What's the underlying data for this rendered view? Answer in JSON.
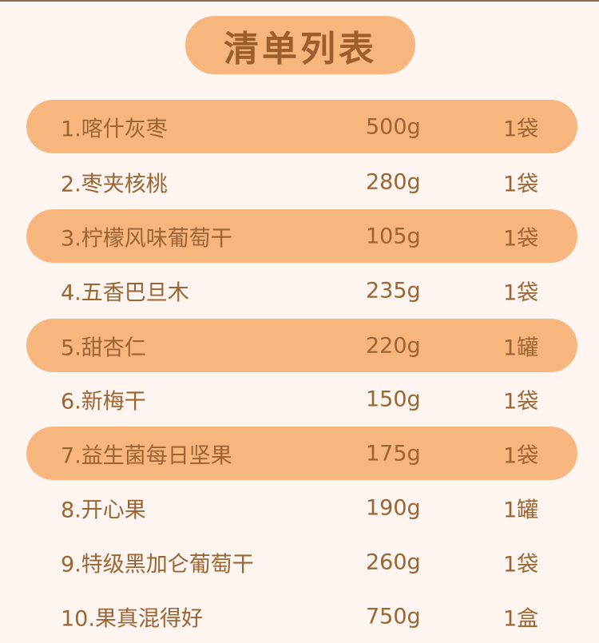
{
  "title": "清单列表",
  "colors": {
    "background": "#fff5f0",
    "highlight": "#f8b67f",
    "text": "#9a6433"
  },
  "items": [
    {
      "name": "1.喀什灰枣",
      "weight": "500g",
      "qty": "1袋",
      "highlighted": true
    },
    {
      "name": "2.枣夹核桃",
      "weight": "280g",
      "qty": "1袋",
      "highlighted": false
    },
    {
      "name": "3.柠檬风味葡萄干",
      "weight": "105g",
      "qty": "1袋",
      "highlighted": true
    },
    {
      "name": "4.五香巴旦木",
      "weight": "235g",
      "qty": "1袋",
      "highlighted": false
    },
    {
      "name": "5.甜杏仁",
      "weight": "220g",
      "qty": "1罐",
      "highlighted": true
    },
    {
      "name": "6.新梅干",
      "weight": "150g",
      "qty": "1袋",
      "highlighted": false
    },
    {
      "name": "7.益生菌每日坚果",
      "weight": "175g",
      "qty": "1袋",
      "highlighted": true
    },
    {
      "name": "8.开心果",
      "weight": "190g",
      "qty": "1罐",
      "highlighted": false
    },
    {
      "name": "9.特级黑加仑葡萄干",
      "weight": "260g",
      "qty": "1袋",
      "highlighted": false
    },
    {
      "name": "10.果真混得好",
      "weight": "750g",
      "qty": "1盒",
      "highlighted": false
    }
  ]
}
